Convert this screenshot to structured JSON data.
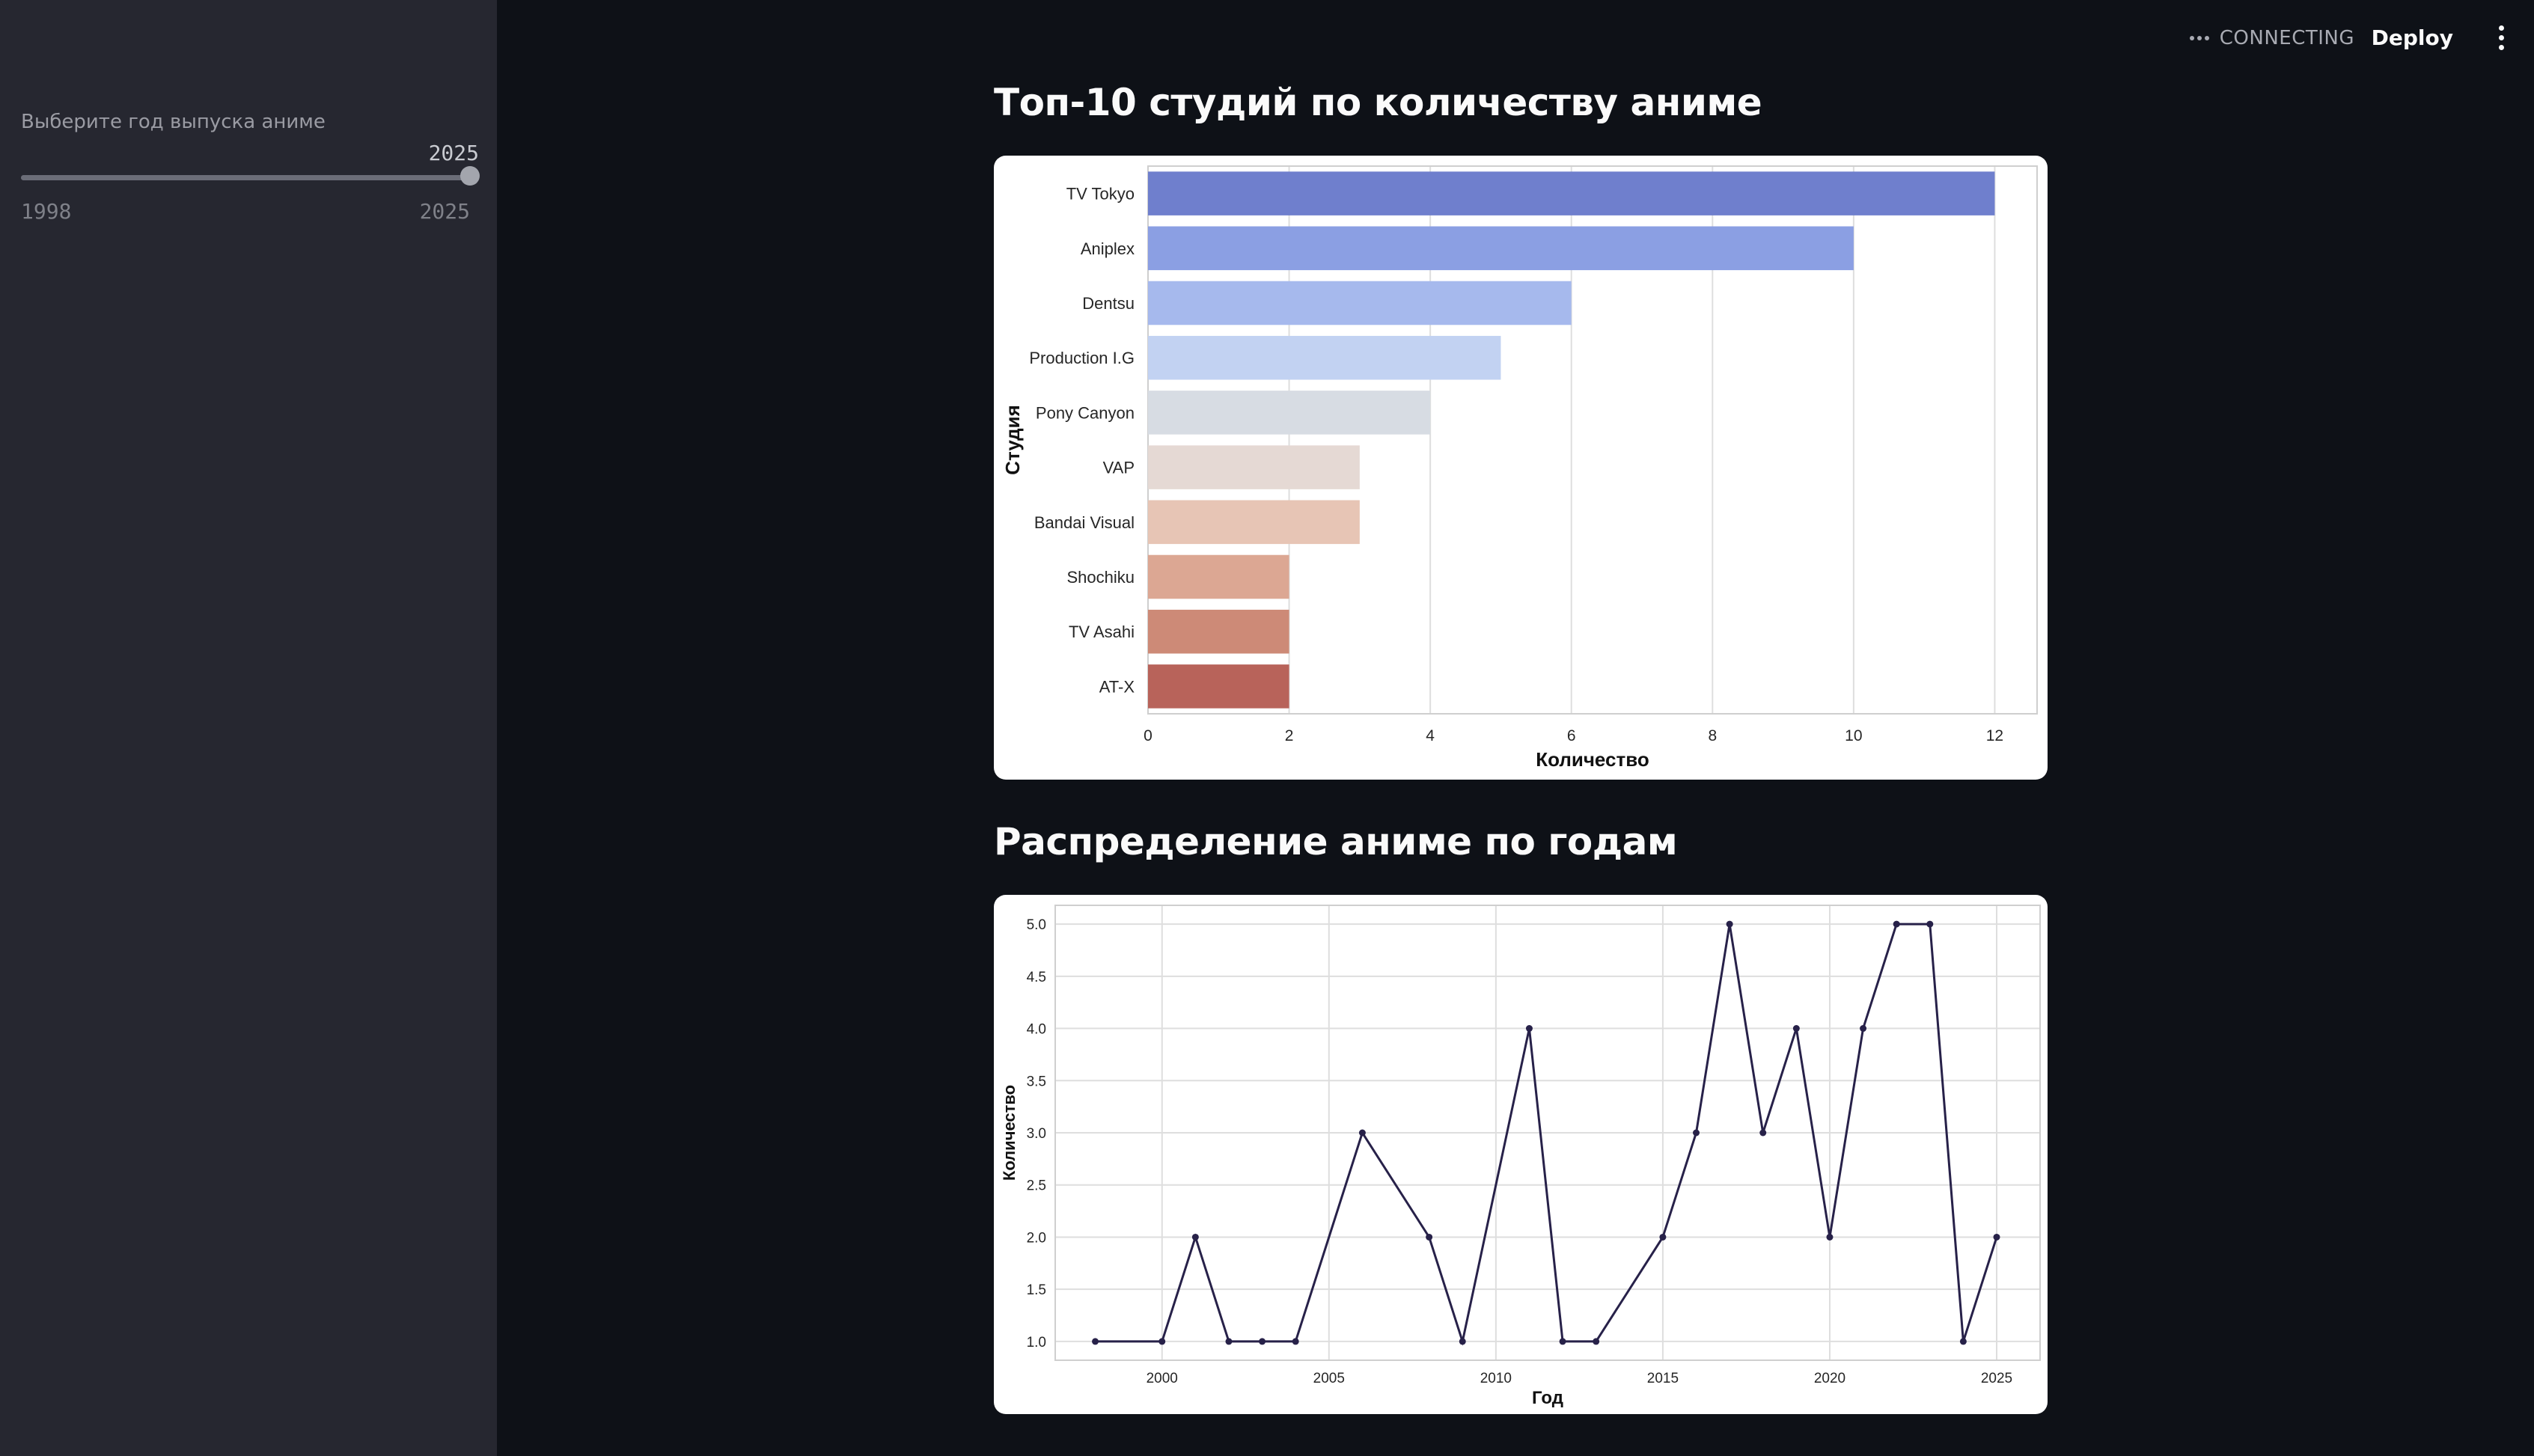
{
  "sidebar": {
    "slider": {
      "label": "Выберите год выпуска аниме",
      "value": 2025,
      "value_text": "2025",
      "min": 1998,
      "max": 2025,
      "min_text": "1998",
      "max_text": "2025"
    }
  },
  "topbar": {
    "status_icon": "more-horizontal-icon",
    "status": "CONNECTING",
    "deploy_label": "Deploy",
    "menu_icon": "more-vertical-icon"
  },
  "sections": {
    "studios_title": "Топ-10 студий по количеству аниме",
    "years_title": "Распределение аниме по годам"
  },
  "chart_data": [
    {
      "type": "bar",
      "orientation": "horizontal",
      "categories": [
        "TV Tokyo",
        "Aniplex",
        "Dentsu",
        "Production I.G",
        "Pony Canyon",
        "VAP",
        "Bandai Visual",
        "Shochiku",
        "TV Asahi",
        "AT-X"
      ],
      "values": [
        12,
        10,
        6,
        5,
        4,
        3,
        3,
        2,
        2,
        2
      ],
      "colors": [
        "#6f7fcd",
        "#8b9fe3",
        "#a6b9ed",
        "#c2d2f2",
        "#d7dce3",
        "#e5d9d4",
        "#e7c5b5",
        "#dca793",
        "#cd8a77",
        "#b8635a"
      ],
      "xlabel": "Количество",
      "ylabel": "Студия",
      "xlim": [
        0,
        12.6
      ],
      "xticks": [
        "0",
        "2",
        "4",
        "6",
        "8",
        "10",
        "12"
      ],
      "grid": true
    },
    {
      "type": "line",
      "x": [
        1998,
        2000,
        2001,
        2002,
        2003,
        2004,
        2006,
        2008,
        2009,
        2011,
        2012,
        2013,
        2015,
        2016,
        2017,
        2018,
        2019,
        2020,
        2021,
        2022,
        2023,
        2024,
        2025
      ],
      "y": [
        1,
        1,
        2,
        1,
        1,
        1,
        3,
        2,
        1,
        4,
        1,
        1,
        2,
        3,
        5,
        3,
        4,
        2,
        4,
        5,
        5,
        1,
        2
      ],
      "color": "#272149",
      "markers": true,
      "xlabel": "Год",
      "ylabel": "Количество",
      "xlim": [
        1996.8,
        2026.3
      ],
      "ylim": [
        0.82,
        5.18
      ],
      "xticks": [
        "2000",
        "2005",
        "2010",
        "2015",
        "2020",
        "2025"
      ],
      "yticks": [
        "1.0",
        "1.5",
        "2.0",
        "2.5",
        "3.0",
        "3.5",
        "4.0",
        "4.5",
        "5.0"
      ],
      "grid": true
    }
  ]
}
